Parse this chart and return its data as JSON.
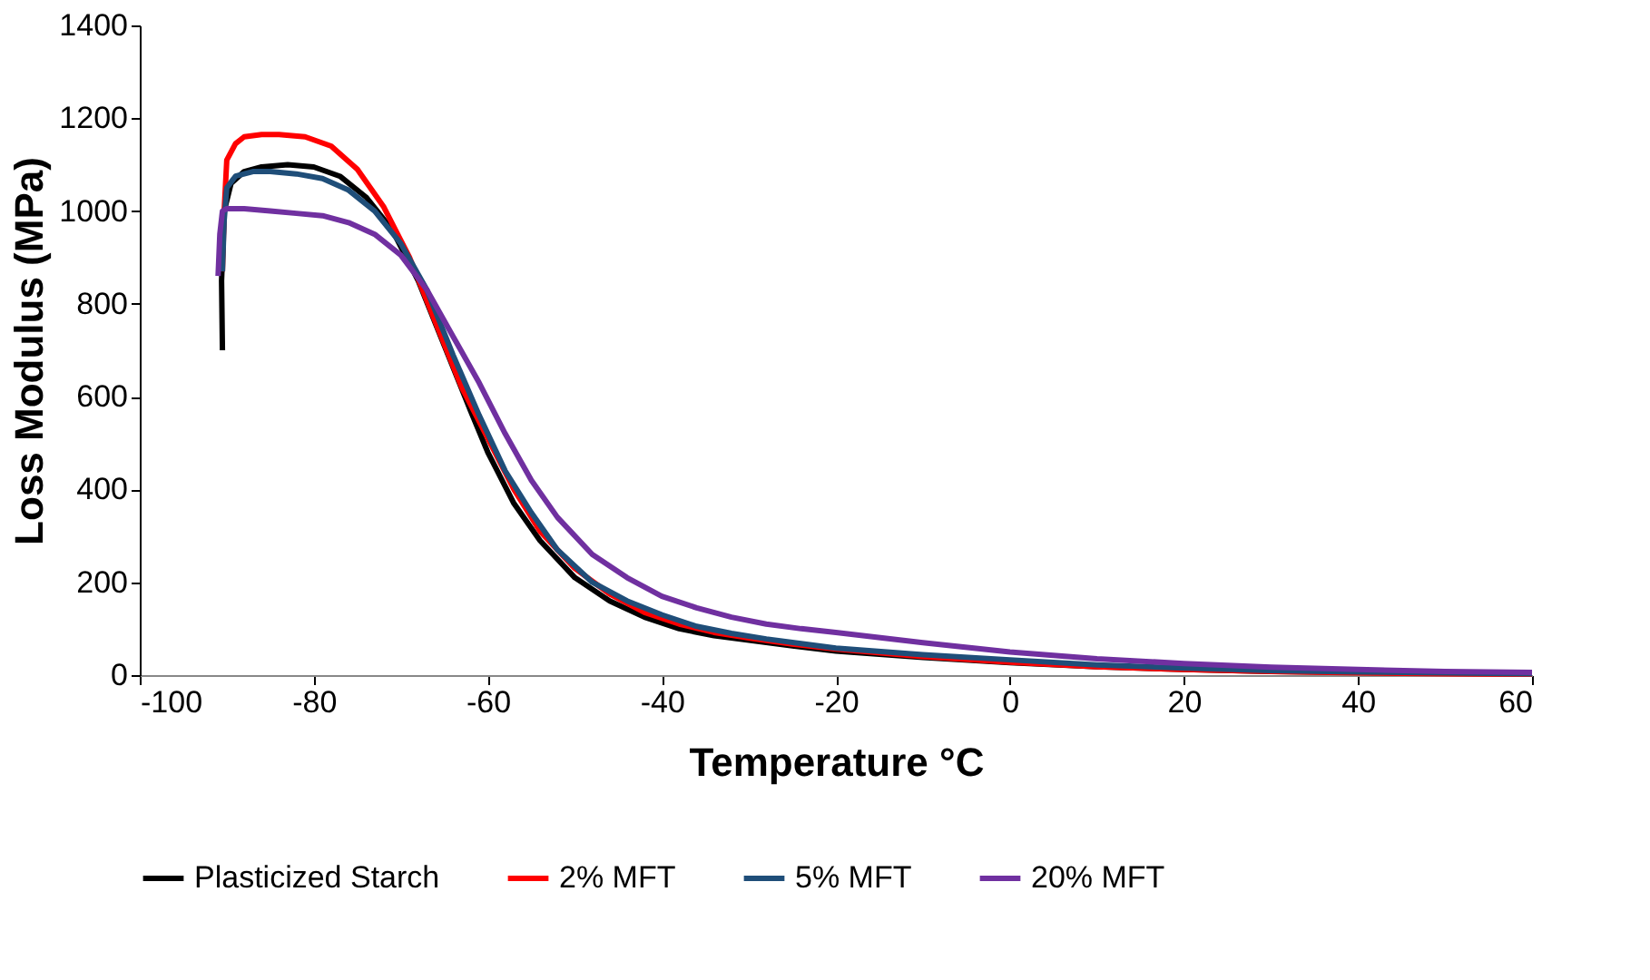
{
  "chart_data": {
    "type": "line",
    "xlabel": "Temperature °C",
    "ylabel": "Loss Modulus (MPa)",
    "xlim": [
      -100,
      60
    ],
    "ylim": [
      0,
      1400
    ],
    "xticks": [
      -100,
      -80,
      -60,
      -40,
      -20,
      0,
      20,
      40,
      60
    ],
    "yticks": [
      0,
      200,
      400,
      600,
      800,
      1000,
      1200,
      1400
    ],
    "grid": false,
    "legend": "bottom",
    "marker": "none",
    "line_style": "solid",
    "series": [
      {
        "name": "Plasticized Starch",
        "color": "#000000",
        "x": [
          -90.5,
          -90.6,
          -90.3,
          -89.5,
          -88,
          -86,
          -83,
          -80,
          -77,
          -74,
          -71,
          -68,
          -65,
          -62,
          -60,
          -57,
          -54,
          -50,
          -46,
          -42,
          -38,
          -34,
          -30,
          -25,
          -20,
          -10,
          0,
          10,
          20,
          30,
          40,
          50,
          60
        ],
        "values": [
          700,
          850,
          1000,
          1060,
          1085,
          1095,
          1100,
          1095,
          1075,
          1030,
          960,
          850,
          710,
          570,
          480,
          370,
          290,
          210,
          160,
          125,
          100,
          85,
          75,
          63,
          52,
          38,
          27,
          18,
          12,
          8,
          6,
          4,
          3
        ]
      },
      {
        "name": "2% MFT",
        "color": "#ff0000",
        "x": [
          -90.5,
          -90.3,
          -90,
          -89,
          -88,
          -86,
          -84,
          -81,
          -78,
          -75,
          -72,
          -69,
          -66,
          -63,
          -60,
          -57,
          -54,
          -50,
          -46,
          -42,
          -38,
          -34,
          -30,
          -25,
          -20,
          -10,
          0,
          10,
          20,
          30,
          40,
          50,
          60
        ],
        "values": [
          870,
          1000,
          1110,
          1145,
          1160,
          1165,
          1165,
          1160,
          1140,
          1090,
          1010,
          900,
          760,
          620,
          510,
          400,
          310,
          230,
          175,
          135,
          110,
          92,
          80,
          67,
          56,
          40,
          28,
          18,
          12,
          8,
          5,
          3,
          2
        ]
      },
      {
        "name": "5% MFT",
        "color": "#1f4e79",
        "x": [
          -90.5,
          -90.3,
          -90,
          -89,
          -87,
          -85,
          -82,
          -79,
          -76,
          -73,
          -70,
          -67,
          -64,
          -61,
          -58,
          -55,
          -52,
          -48,
          -44,
          -40,
          -36,
          -32,
          -28,
          -24,
          -20,
          -10,
          0,
          10,
          20,
          30,
          40,
          50,
          60
        ],
        "values": [
          870,
          980,
          1050,
          1075,
          1085,
          1085,
          1080,
          1070,
          1045,
          1000,
          930,
          830,
          690,
          560,
          440,
          350,
          270,
          200,
          160,
          130,
          105,
          90,
          78,
          68,
          58,
          44,
          33,
          22,
          15,
          10,
          7,
          5,
          3
        ]
      },
      {
        "name": "20% MFT",
        "color": "#7030a0",
        "x": [
          -91,
          -90.8,
          -90.5,
          -90,
          -88,
          -85,
          -82,
          -79,
          -76,
          -73,
          -70,
          -67,
          -64,
          -61,
          -58,
          -55,
          -52,
          -48,
          -44,
          -40,
          -36,
          -32,
          -28,
          -24,
          -20,
          -10,
          0,
          10,
          20,
          30,
          40,
          50,
          60
        ],
        "values": [
          860,
          950,
          1000,
          1005,
          1005,
          1000,
          995,
          990,
          975,
          950,
          905,
          830,
          730,
          630,
          520,
          420,
          340,
          260,
          210,
          170,
          145,
          125,
          110,
          100,
          92,
          70,
          50,
          35,
          25,
          17,
          12,
          8,
          6
        ]
      }
    ]
  }
}
